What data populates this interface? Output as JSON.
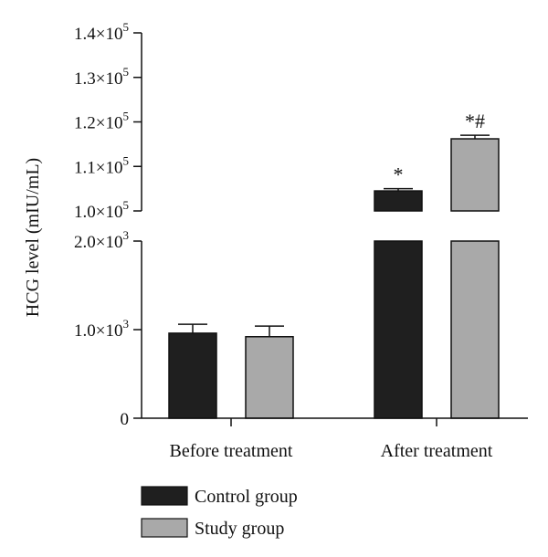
{
  "chart_data": {
    "type": "bar",
    "ylabel": "HCG level (mIU/mL)",
    "categories": [
      "Before treatment",
      "After treatment"
    ],
    "series": [
      {
        "name": "Control group",
        "color": "#1f1f1f",
        "values": [
          960,
          104500
        ],
        "errors": [
          100,
          500
        ],
        "annotations": [
          "",
          "*"
        ]
      },
      {
        "name": "Study group",
        "color": "#a9a9a9",
        "values": [
          920,
          116200
        ],
        "errors": [
          120,
          800
        ],
        "annotations": [
          "",
          "*#"
        ]
      }
    ],
    "y_axis": {
      "broken": true,
      "lower_segment": {
        "range": [
          0,
          2000
        ],
        "ticks": [
          0,
          1000,
          2000
        ]
      },
      "upper_segment": {
        "range": [
          100000,
          140000
        ],
        "ticks": [
          100000,
          110000,
          120000,
          130000,
          140000
        ]
      }
    },
    "ytick_labels": {
      "0": {
        "mantissa": "0",
        "exponent": ""
      },
      "1000": {
        "mantissa": "1.0×10",
        "exponent": "3"
      },
      "2000": {
        "mantissa": "2.0×10",
        "exponent": "3"
      },
      "100000": {
        "mantissa": "1.0×10",
        "exponent": "5"
      },
      "110000": {
        "mantissa": "1.1×10",
        "exponent": "5"
      },
      "120000": {
        "mantissa": "1.2×10",
        "exponent": "5"
      },
      "130000": {
        "mantissa": "1.3×10",
        "exponent": "5"
      },
      "140000": {
        "mantissa": "1.4×10",
        "exponent": "5"
      }
    },
    "legend": {
      "placement": "bottom-left"
    },
    "grid": false
  }
}
